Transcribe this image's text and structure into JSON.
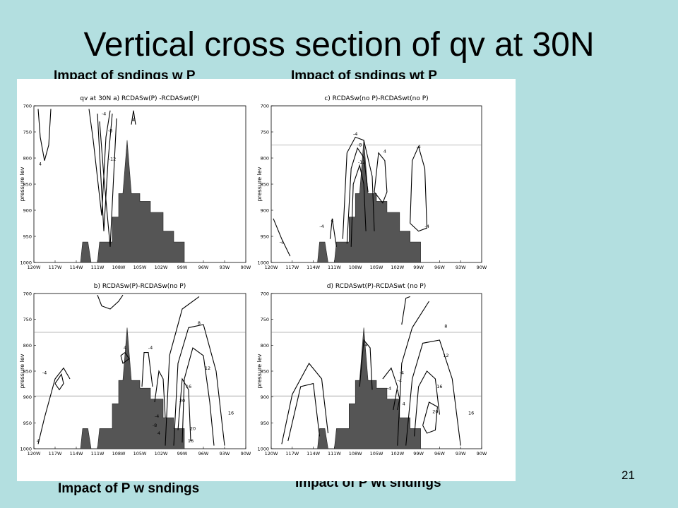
{
  "slide": {
    "title": "Vertical cross section of qv at 30N",
    "page_number": "21",
    "captions": {
      "top_left": "Impact of sndings w P",
      "top_right": "Impact of sndings wt P",
      "bottom_left": "Impact of P w sndings",
      "bottom_right": "Impact of P wt sndings"
    },
    "colors": {
      "background": "#b3dfe0",
      "terrain": "#555555",
      "panel": "#ffffff"
    }
  },
  "chart_data": [
    {
      "type": "contour",
      "title": "qv at 30N  a) RCDASw(P)   -RCDASwt(P)",
      "ylabel": "pressure lev",
      "x_ticks": [
        "120W",
        "117W",
        "114W",
        "111W",
        "108W",
        "105W",
        "102W",
        "99W",
        "96W",
        "93W",
        "90W"
      ],
      "y_ticks": [
        "700",
        "750",
        "800",
        "850",
        "900",
        "950",
        "1000"
      ],
      "ylim": [
        1000,
        700
      ],
      "contour_labels": [
        "-4",
        "4",
        "-8",
        "-12",
        "4"
      ]
    },
    {
      "type": "contour",
      "title": "c) RCDASw(no P)-RCDASwt(no P)",
      "ylabel": "pressure lev",
      "x_ticks": [
        "120W",
        "117W",
        "114W",
        "111W",
        "108W",
        "105W",
        "102W",
        "99W",
        "96W",
        "93W",
        "90W"
      ],
      "y_ticks": [
        "700",
        "750",
        "800",
        "850",
        "900",
        "950",
        "1000"
      ],
      "ylim": [
        1000,
        700
      ],
      "contour_labels": [
        "-4",
        "-8",
        "-12",
        "4",
        "-4",
        "-4",
        "-4",
        "4",
        "-4"
      ]
    },
    {
      "type": "contour",
      "title": "b) RCDASw(P)-RCDASw(no P)",
      "ylabel": "pressure lev",
      "x_ticks": [
        "120W",
        "117W",
        "114W",
        "111W",
        "108W",
        "105W",
        "102W",
        "99W",
        "96W",
        "93W",
        "90W"
      ],
      "y_ticks": [
        "700",
        "750",
        "800",
        "850",
        "900",
        "950",
        "1000"
      ],
      "ylim": [
        1000,
        700
      ],
      "contour_labels": [
        "-4",
        "4",
        "-4",
        "8",
        "12",
        "16",
        "20",
        "20",
        "16",
        "16",
        "4",
        "-4",
        "-8",
        "4"
      ]
    },
    {
      "type": "contour",
      "title": "d) RCDASwt(P)-RCDASwt (no P)",
      "ylabel": "pressure lev",
      "x_ticks": [
        "120W",
        "117W",
        "114W",
        "111W",
        "108W",
        "105W",
        "102W",
        "99W",
        "96W",
        "93W",
        "90W"
      ],
      "y_ticks": [
        "700",
        "750",
        "800",
        "850",
        "900",
        "950",
        "1000"
      ],
      "ylim": [
        1000,
        700
      ],
      "contour_labels": [
        "4",
        "8",
        "12",
        "16",
        "20",
        "16",
        "-4",
        "-4",
        "-4",
        "4"
      ]
    }
  ]
}
